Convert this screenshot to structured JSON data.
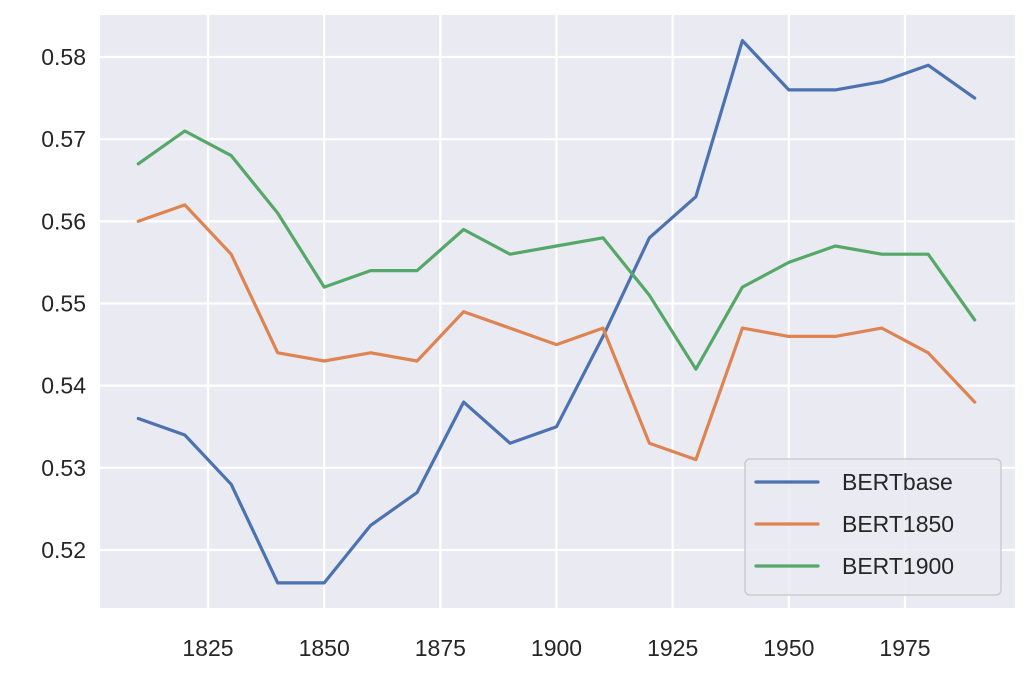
{
  "chart_data": {
    "type": "line",
    "title": "",
    "xlabel": "",
    "ylabel": "",
    "x": [
      1810,
      1820,
      1830,
      1840,
      1850,
      1860,
      1870,
      1880,
      1890,
      1900,
      1910,
      1920,
      1930,
      1940,
      1950,
      1960,
      1970,
      1980,
      1990
    ],
    "series": [
      {
        "name": "BERTbase",
        "color": "#4c72b0",
        "values": [
          0.536,
          0.534,
          0.528,
          0.516,
          0.516,
          0.523,
          0.527,
          0.538,
          0.533,
          0.535,
          0.546,
          0.558,
          0.563,
          0.582,
          0.576,
          0.576,
          0.577,
          0.579,
          0.575
        ]
      },
      {
        "name": "BERT1850",
        "color": "#dd8452",
        "values": [
          0.56,
          0.562,
          0.556,
          0.544,
          0.543,
          0.544,
          0.543,
          0.549,
          0.547,
          0.545,
          0.547,
          0.533,
          0.531,
          0.547,
          0.546,
          0.546,
          0.547,
          0.544,
          0.538
        ]
      },
      {
        "name": "BERT1900",
        "color": "#55a868",
        "values": [
          0.567,
          0.571,
          0.568,
          0.561,
          0.552,
          0.554,
          0.554,
          0.559,
          0.556,
          0.557,
          0.558,
          0.551,
          0.542,
          0.552,
          0.555,
          0.557,
          0.556,
          0.556,
          0.548
        ]
      }
    ],
    "xticks": [
      1825,
      1850,
      1875,
      1900,
      1925,
      1950,
      1975
    ],
    "yticks": [
      0.52,
      0.53,
      0.54,
      0.55,
      0.56,
      0.57,
      0.58
    ],
    "ytick_labels": [
      "0.52",
      "0.53",
      "0.54",
      "0.55",
      "0.56",
      "0.57",
      "0.58"
    ],
    "xlim": [
      1801,
      1999
    ],
    "ylim": [
      0.5123,
      0.5844
    ],
    "grid": true,
    "legend_position": "lower right",
    "style": {
      "background": "#eaeaf2",
      "grid_color": "#ffffff"
    }
  }
}
